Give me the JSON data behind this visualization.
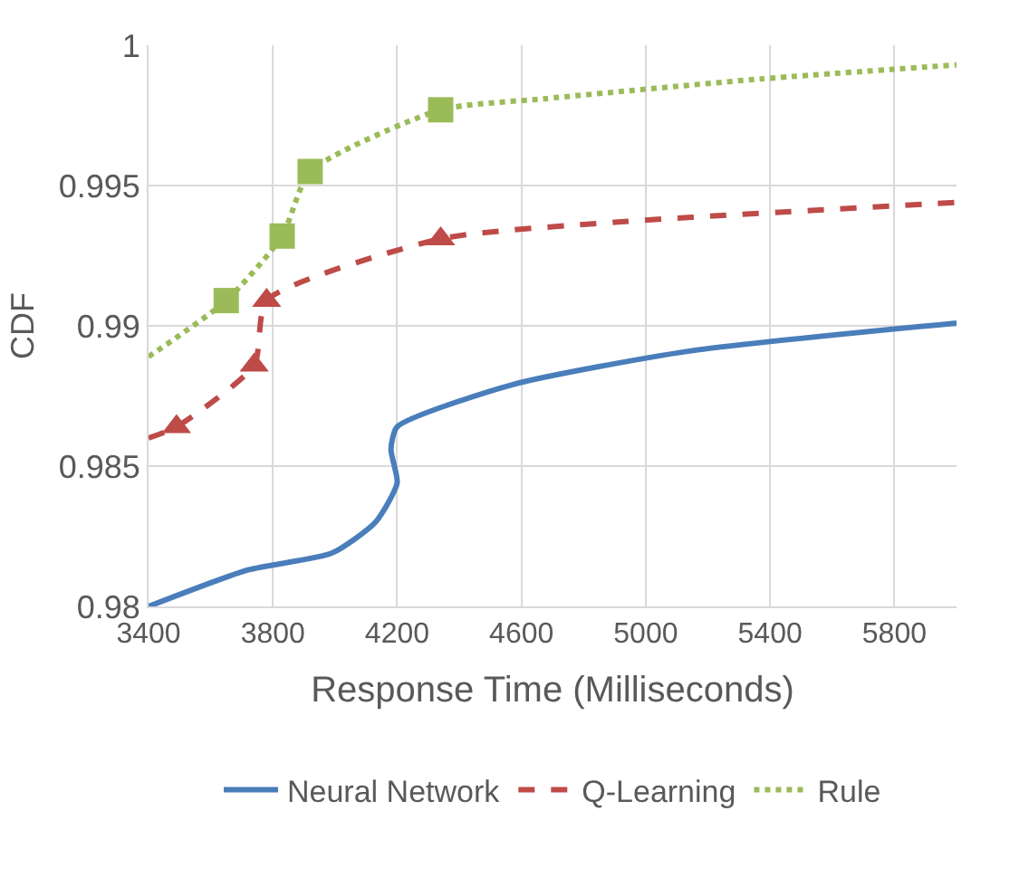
{
  "chart_data": {
    "type": "line",
    "xlabel": "Response Time (Milliseconds)",
    "ylabel": "CDF",
    "xlim": [
      3400,
      6000
    ],
    "xticks": [
      3400,
      3800,
      4200,
      4600,
      5000,
      5400,
      5800
    ],
    "ylim": [
      0.98,
      1
    ],
    "yticks": [
      0.98,
      0.985,
      0.99,
      0.995,
      1
    ],
    "grid": true,
    "legend": "bottom",
    "series": [
      {
        "name": "Neural Network",
        "color": "#4a7ebb",
        "line_style": "solid",
        "marker": "none",
        "x": [
          3400,
          3720,
          3990,
          4130,
          4200,
          4180,
          4200,
          4570,
          5140,
          6000
        ],
        "values": [
          0.98,
          0.9813,
          0.9819,
          0.983,
          0.9844,
          0.9856,
          0.9864,
          0.9879,
          0.9891,
          0.9901
        ]
      },
      {
        "name": "Q-Learning",
        "color": "#be4b48",
        "line_style": "dashed",
        "marker": "none",
        "x": [
          3400,
          3490,
          3740,
          3780,
          4340,
          4910,
          6000
        ],
        "values": [
          0.986,
          0.9864,
          0.9886,
          0.9909,
          0.9931,
          0.9937,
          0.9944
        ]
      },
      {
        "type": "scatter",
        "color": "#be4b48",
        "marker": "triangle",
        "x": [
          3490,
          3740,
          3780,
          4340
        ],
        "values": [
          0.9864,
          0.9886,
          0.9909,
          0.9931
        ]
      },
      {
        "name": "Rule",
        "color": "#9bbb59",
        "line_style": "dotted",
        "marker": "none",
        "x": [
          3400,
          3650,
          3830,
          3920,
          4340,
          4680,
          5370,
          6000
        ],
        "values": [
          0.9889,
          0.9909,
          0.9932,
          0.9955,
          0.9977,
          0.9981,
          0.9988,
          0.9993
        ]
      },
      {
        "type": "scatter",
        "color": "#9bbb59",
        "marker": "square",
        "x": [
          3650,
          3830,
          3920,
          4340
        ],
        "values": [
          0.9909,
          0.9932,
          0.9955,
          0.9977
        ]
      }
    ]
  }
}
